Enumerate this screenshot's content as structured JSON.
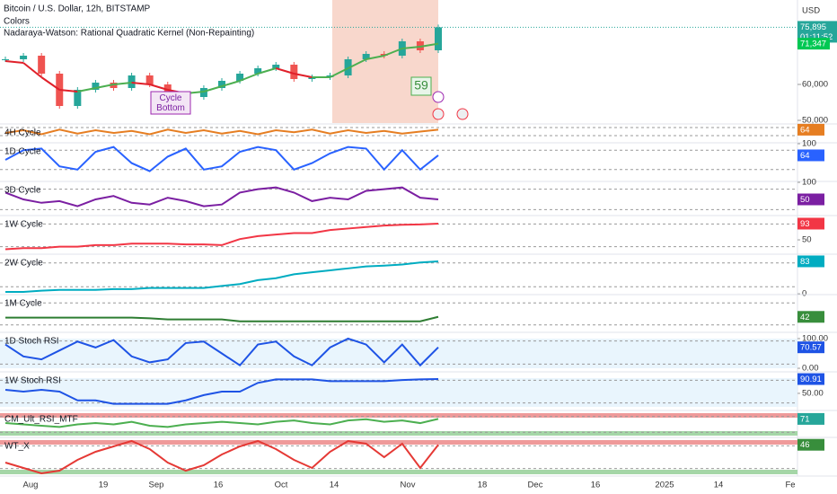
{
  "header": {
    "title": "Bitcoin / U.S. Dollar, 12h, BITSTAMP",
    "line2": "Colors",
    "line3": "Nadaraya-Watson: Rational Quadratic Kernel (Non-Repainting)"
  },
  "price": {
    "unit": "USD",
    "ylim": [
      49250,
      83500
    ],
    "yticks": [
      {
        "value": 60000,
        "label": "60,000"
      },
      {
        "value": 50000,
        "label": "50,000"
      }
    ],
    "values": [
      67000,
      68000,
      63000,
      54000,
      58500,
      60500,
      59000,
      62500,
      60000,
      57000,
      56500,
      59000,
      61000,
      63000,
      64500,
      65500,
      61500,
      62000,
      62500,
      67000,
      68500,
      68000,
      72000,
      69500,
      75895
    ],
    "kernel": [
      66500,
      66000,
      62000,
      58500,
      58000,
      59000,
      60000,
      60500,
      60000,
      58500,
      57500,
      58000,
      59500,
      61000,
      63000,
      64500,
      63000,
      62000,
      62000,
      64500,
      67000,
      68000,
      70000,
      70500,
      71347
    ],
    "up_color": "#26a69a",
    "down_color": "#ef5350",
    "kernel_up": "#4caf50",
    "kernel_down": "#e0202a",
    "last": {
      "value": 75895,
      "label": "75,895"
    },
    "countdown": "01:11:52",
    "kernel_last": {
      "value": 71347,
      "label": "71,347"
    },
    "annotation": "Cycle\nBottom",
    "count_label": "59"
  },
  "panes": [
    {
      "title": "4H Cycle",
      "ylim": [
        0,
        100
      ],
      "yticks": [],
      "color": "#e67e22",
      "values": [
        40,
        60,
        30,
        65,
        35,
        60,
        40,
        55,
        30,
        65,
        40,
        60,
        35,
        55,
        30,
        60,
        45,
        65,
        35,
        60,
        40,
        55,
        35,
        50,
        64
      ],
      "badge_color": "#e67e22"
    },
    {
      "title": "1D Cycle",
      "ylim": [
        0,
        100
      ],
      "yticks": [
        100
      ],
      "color": "#2962ff",
      "values": [
        50,
        80,
        85,
        30,
        20,
        75,
        90,
        40,
        15,
        60,
        85,
        20,
        30,
        75,
        90,
        80,
        20,
        40,
        70,
        90,
        85,
        20,
        80,
        20,
        64
      ],
      "badge_color": "#2962ff"
    },
    {
      "title": "3D Cycle",
      "ylim": [
        0,
        100
      ],
      "yticks": [
        100
      ],
      "color": "#7b1fa2",
      "values": [
        70,
        50,
        40,
        45,
        30,
        50,
        60,
        40,
        35,
        55,
        45,
        30,
        35,
        70,
        80,
        85,
        70,
        45,
        55,
        50,
        75,
        80,
        85,
        55,
        50
      ],
      "badge_color": "#7b1fa2"
    },
    {
      "title": "1W Cycle",
      "ylim": [
        12,
        112
      ],
      "yticks": [
        50
      ],
      "color": "#f23645",
      "values": [
        25,
        28,
        28,
        32,
        32,
        36,
        36,
        40,
        40,
        40,
        38,
        38,
        36,
        52,
        60,
        64,
        68,
        68,
        76,
        80,
        84,
        88,
        90,
        91,
        93
      ],
      "badge_color": "#f23645"
    },
    {
      "title": "2W Cycle",
      "ylim": [
        -2,
        99
      ],
      "yticks": [
        0
      ],
      "color": "#00acc1",
      "values": [
        5,
        5,
        8,
        10,
        10,
        10,
        12,
        12,
        15,
        15,
        15,
        15,
        20,
        25,
        35,
        40,
        50,
        55,
        60,
        65,
        70,
        72,
        75,
        80,
        83
      ],
      "badge_color": "#00acc1"
    },
    {
      "title": "1M Cycle",
      "ylim": [
        0,
        100
      ],
      "yticks": [],
      "color": "#2e7d32",
      "values": [
        40,
        40,
        40,
        40,
        40,
        40,
        40,
        40,
        38,
        35,
        35,
        35,
        35,
        30,
        30,
        30,
        30,
        30,
        30,
        30,
        30,
        30,
        30,
        30,
        42
      ],
      "badge_color": "#388e3c"
    },
    {
      "title": "1D Stoch RSI",
      "ylim": [
        -12,
        118
      ],
      "yticks": [
        {
          "value": 100,
          "label": "100.00"
        },
        {
          "value": 0,
          "label": "0.00"
        }
      ],
      "color": "#1e53e5",
      "values": [
        80,
        40,
        30,
        60,
        90,
        70,
        95,
        40,
        20,
        30,
        85,
        90,
        50,
        10,
        80,
        90,
        40,
        10,
        70,
        100,
        80,
        20,
        80,
        10,
        70.57
      ],
      "badge_color": "#1e53e5"
    },
    {
      "title": "1W Stoch RSI",
      "ylim": [
        1,
        109
      ],
      "yticks": [
        {
          "value": 50,
          "label": "50.00"
        }
      ],
      "color": "#1e53e5",
      "values": [
        60,
        55,
        60,
        55,
        30,
        30,
        20,
        20,
        20,
        20,
        30,
        45,
        55,
        55,
        80,
        90,
        90,
        90,
        85,
        85,
        85,
        85,
        88,
        90,
        90.91
      ],
      "badge_color": "#1e53e5"
    },
    {
      "title": "CM_Ult_RSI_MTF",
      "ylim": [
        0,
        100
      ],
      "yticks": [],
      "color": "#4caf50",
      "values": [
        55,
        50,
        45,
        40,
        50,
        55,
        50,
        60,
        45,
        40,
        50,
        55,
        60,
        55,
        50,
        60,
        65,
        55,
        50,
        65,
        70,
        60,
        65,
        55,
        71
      ],
      "badge_color": "#26a69a"
    },
    {
      "title": "WT_X",
      "ylim": [
        -70,
        70
      ],
      "yticks": [],
      "color": "#e53935",
      "values": [
        -20,
        -40,
        -60,
        -50,
        -10,
        20,
        40,
        60,
        30,
        -20,
        -50,
        -30,
        10,
        40,
        60,
        30,
        -10,
        -40,
        20,
        60,
        50,
        0,
        50,
        -40,
        46
      ],
      "badge_color": "#388e3c"
    }
  ],
  "x_axis": [
    "Aug",
    "19",
    "Sep",
    "16",
    "Oct",
    "14",
    "Nov",
    "18",
    "Dec",
    "16",
    "2025",
    "14",
    "Fe"
  ]
}
